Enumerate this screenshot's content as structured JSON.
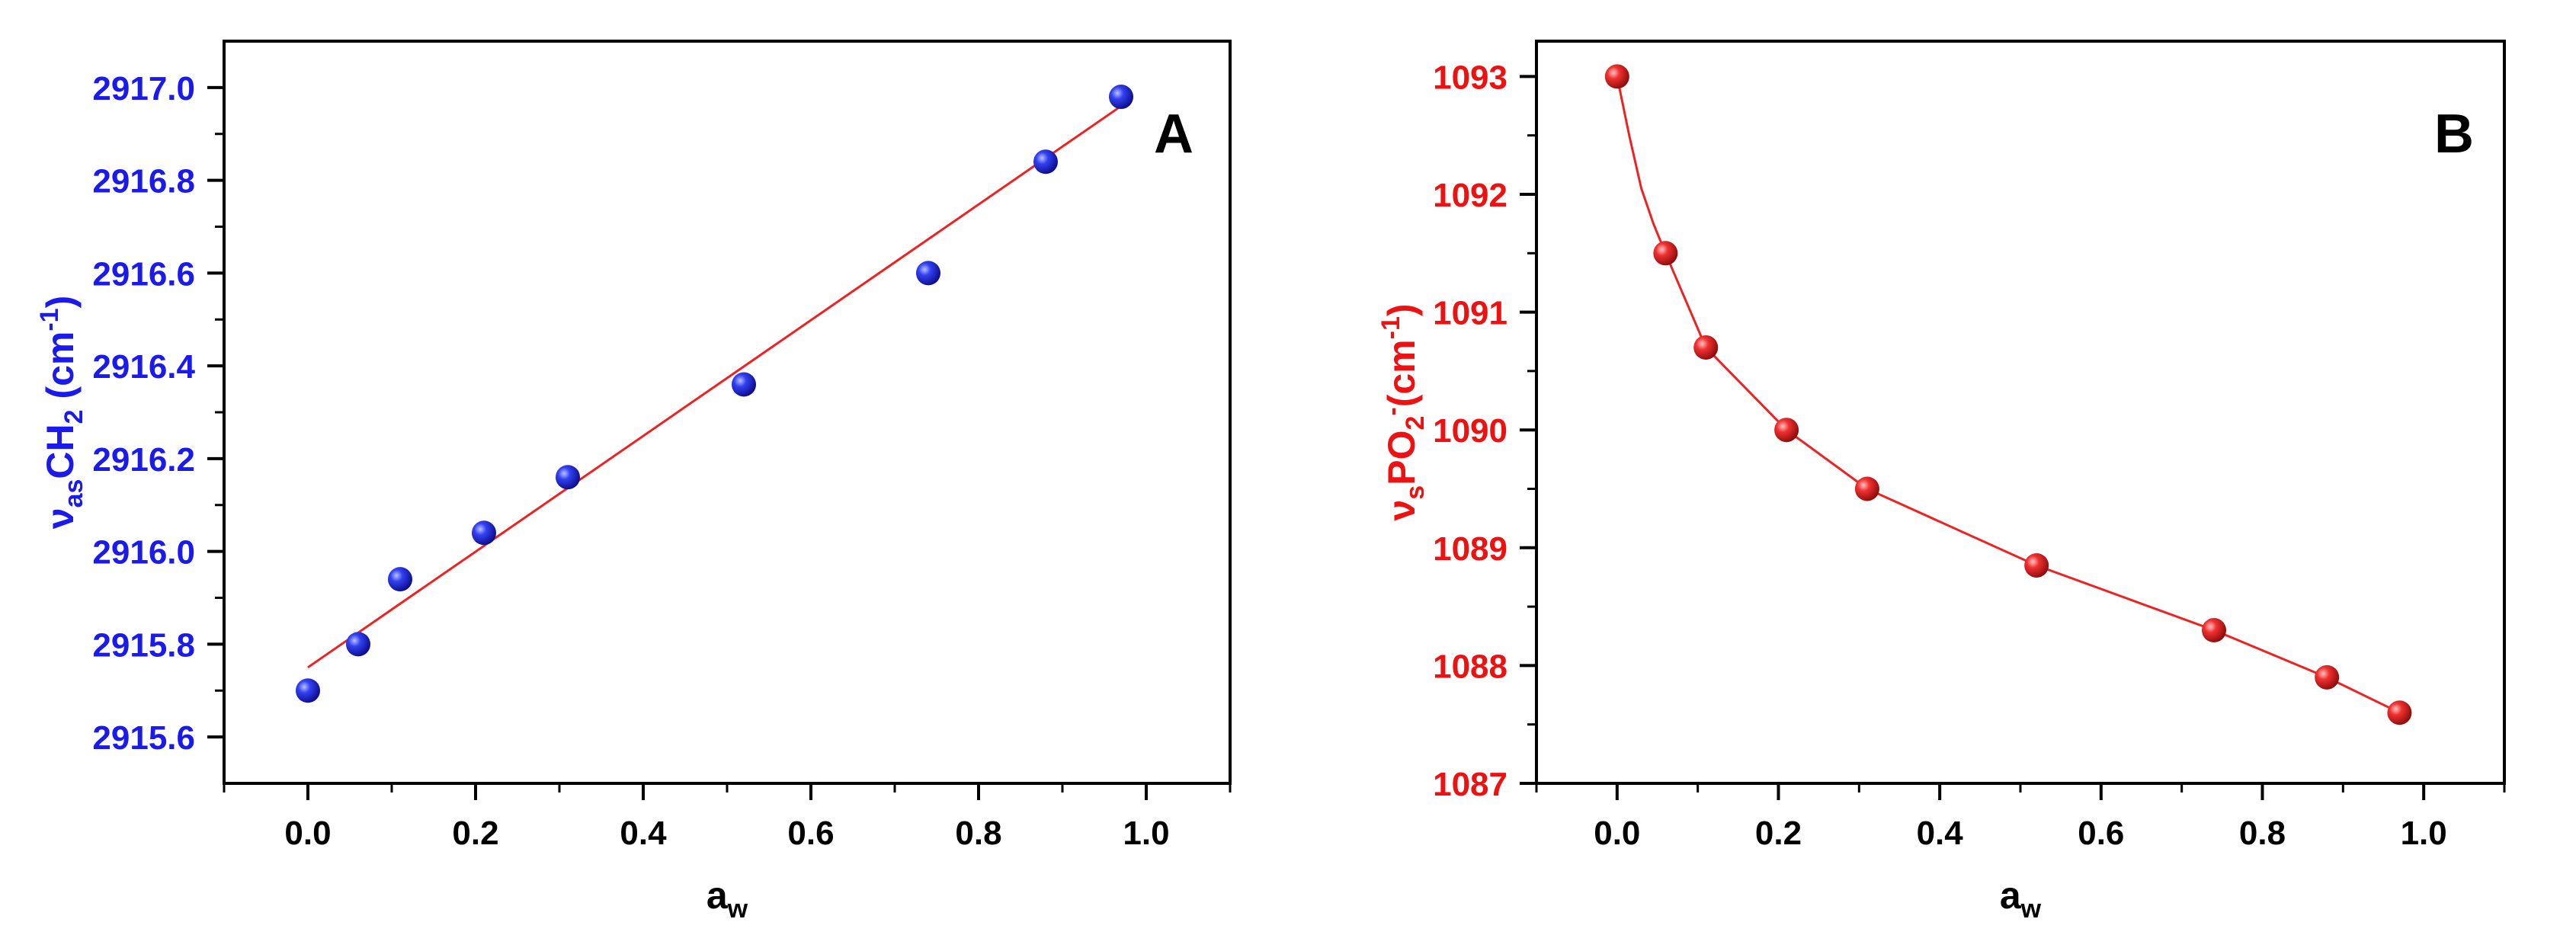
{
  "figure": {
    "panels": [
      {
        "panel_label": "A",
        "y_label_main": "ν",
        "y_label_sub": "as",
        "y_label_rest": "CH",
        "y_label_rest_sub": "2",
        "y_label_unit": " (cm",
        "y_label_unit_sup": "-1",
        "y_label_close": ")",
        "x_label_main": "a",
        "x_label_sub": "w",
        "y_tick_labels": [
          "2915.6",
          "2915.8",
          "2916.0",
          "2916.2",
          "2916.4",
          "2916.6",
          "2916.8",
          "2917.0"
        ],
        "x_tick_labels": [
          "0.0",
          "0.2",
          "0.4",
          "0.6",
          "0.8",
          "1.0"
        ]
      },
      {
        "panel_label": "B",
        "y_label_main": "ν",
        "y_label_sub": "s",
        "y_label_rest": "PO",
        "y_label_rest_sub": "2",
        "y_label_rest_sup": "-",
        "y_label_unit": "(cm",
        "y_label_unit_sup": "-1",
        "y_label_close": ")",
        "x_label_main": "a",
        "x_label_sub": "w",
        "y_tick_labels": [
          "1087",
          "1088",
          "1089",
          "1090",
          "1091",
          "1092",
          "1093"
        ],
        "x_tick_labels": [
          "0.0",
          "0.2",
          "0.4",
          "0.6",
          "0.8",
          "1.0"
        ]
      }
    ]
  },
  "chart_data": [
    {
      "type": "scatter",
      "panel": "A",
      "xlabel": "aw",
      "ylabel": "νasCH2 (cm-1)",
      "xlim": [
        -0.1,
        1.1
      ],
      "ylim": [
        2915.5,
        2917.1
      ],
      "x_ticks": [
        0.0,
        0.2,
        0.4,
        0.6,
        0.8,
        1.0
      ],
      "y_ticks": [
        2915.6,
        2915.8,
        2916.0,
        2916.2,
        2916.4,
        2916.6,
        2916.8,
        2917.0
      ],
      "marker_color": "#1a1aee",
      "axis_label_color": "#1a1aee",
      "fit_color": "#ee2222",
      "grid": false,
      "legend": "none",
      "x": [
        0.0,
        0.06,
        0.11,
        0.21,
        0.31,
        0.52,
        0.74,
        0.88,
        0.97
      ],
      "y": [
        2915.7,
        2915.8,
        2915.94,
        2916.04,
        2916.16,
        2916.36,
        2916.6,
        2916.84,
        2916.98
      ],
      "fit_line": {
        "type": "linear",
        "x": [
          0.0,
          0.97
        ],
        "y": [
          2915.75,
          2916.96
        ]
      }
    },
    {
      "type": "scatter",
      "panel": "B",
      "xlabel": "aw",
      "ylabel": "νsPO2-(cm-1)",
      "xlim": [
        -0.1,
        1.1
      ],
      "ylim": [
        1087,
        1093.3
      ],
      "x_ticks": [
        0.0,
        0.2,
        0.4,
        0.6,
        0.8,
        1.0
      ],
      "y_ticks": [
        1087,
        1088,
        1089,
        1090,
        1091,
        1092,
        1093
      ],
      "marker_color": "#ee1111",
      "axis_label_color": "#ee1111",
      "fit_color": "#ee2222",
      "grid": false,
      "legend": "none",
      "x": [
        0.0,
        0.06,
        0.11,
        0.21,
        0.31,
        0.52,
        0.74,
        0.88,
        0.97
      ],
      "y": [
        1093.0,
        1091.5,
        1090.7,
        1090.0,
        1089.5,
        1088.85,
        1088.3,
        1087.9,
        1087.6
      ],
      "fit_line": {
        "type": "smooth",
        "x": [
          0.0,
          0.015,
          0.03,
          0.045,
          0.06,
          0.11,
          0.21,
          0.31,
          0.52,
          0.74,
          0.88,
          0.97
        ],
        "y": [
          1093.0,
          1092.5,
          1092.05,
          1091.75,
          1091.5,
          1090.7,
          1090.0,
          1089.5,
          1088.85,
          1088.3,
          1087.9,
          1087.6
        ]
      }
    }
  ]
}
